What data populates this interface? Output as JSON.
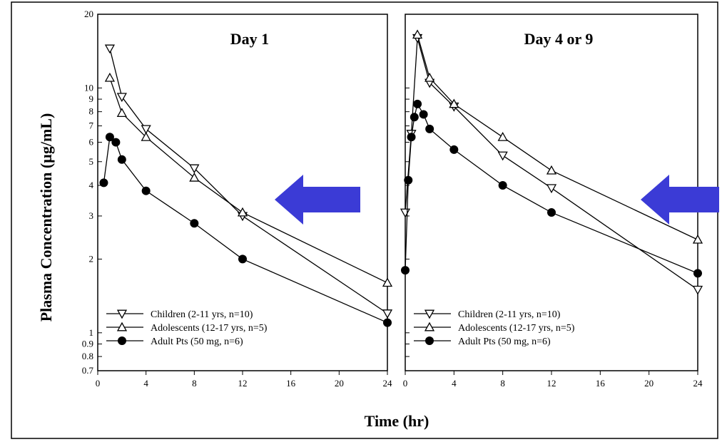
{
  "chart_data": {
    "type": "line",
    "ylabel": "Plasma Concentration (µg/mL)",
    "xlabel": "Time (hr)",
    "y_scale": "log",
    "ylim": [
      0.7,
      20
    ],
    "y_ticks": [
      "20",
      "10",
      "9",
      "8",
      "7",
      "6",
      "5",
      "4",
      "3",
      "2",
      "1",
      "0.9",
      "0.8",
      "0.7"
    ],
    "x_ticks": [
      "0",
      "4",
      "8",
      "12",
      "16",
      "20",
      "24"
    ],
    "xlim": [
      0,
      24
    ],
    "grid": false,
    "legend_position": "bottom-left",
    "annotation": "blue arrow pointing left",
    "arrow_color": "#3b3bd6",
    "panels": [
      {
        "title": "Day 1",
        "legend_labels": [
          "Children (2-11 yrs, n=10)",
          "Adolescents (12-17 yrs, n=5)",
          "Adult Pts (50 mg, n=6)"
        ],
        "series": [
          {
            "marker": "open-triangle-down",
            "x": [
              1,
              2,
              4,
              8,
              12,
              24
            ],
            "y": [
              14.5,
              9.2,
              6.8,
              4.7,
              3.0,
              1.2
            ]
          },
          {
            "marker": "open-triangle-up",
            "x": [
              1,
              2,
              4,
              8,
              12,
              24
            ],
            "y": [
              11.0,
              7.9,
              6.3,
              4.3,
              3.1,
              1.6
            ]
          },
          {
            "marker": "filled-circle",
            "x": [
              0.5,
              1,
              1.5,
              2,
              4,
              8,
              12,
              24
            ],
            "y": [
              4.1,
              6.3,
              6.0,
              5.1,
              3.8,
              2.8,
              2.0,
              1.1
            ]
          }
        ]
      },
      {
        "title": "Day 4 or 9",
        "legend_labels": [
          "Children (2-11 yrs, n=10)",
          "Adolescents (12-17 yrs, n=5)",
          "Adult Pts (50 mg, n=6)"
        ],
        "series": [
          {
            "marker": "open-triangle-down",
            "x": [
              0,
              0.5,
              1,
              2,
              4,
              8,
              12,
              24
            ],
            "y": [
              3.1,
              6.5,
              16.0,
              10.5,
              8.4,
              5.3,
              3.9,
              1.5
            ]
          },
          {
            "marker": "open-triangle-up",
            "x": [
              1,
              2,
              4,
              8,
              12,
              24
            ],
            "y": [
              16.5,
              11.0,
              8.6,
              6.3,
              4.6,
              2.4
            ]
          },
          {
            "marker": "filled-circle",
            "x": [
              0,
              0.25,
              0.5,
              0.75,
              1,
              1.5,
              2,
              4,
              8,
              12,
              24
            ],
            "y": [
              1.8,
              4.2,
              6.3,
              7.6,
              8.6,
              7.8,
              6.8,
              5.6,
              4.0,
              3.1,
              1.75
            ]
          }
        ]
      }
    ]
  }
}
